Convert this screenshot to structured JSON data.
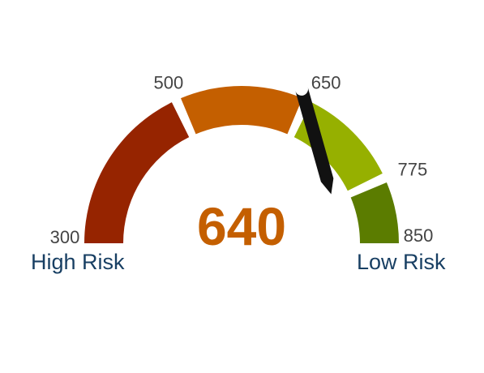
{
  "gauge": {
    "min": 300,
    "max": 850,
    "value": 640,
    "value_label": "640",
    "value_color": "#c45f00",
    "segments": [
      {
        "from": 300,
        "to": 500,
        "color": "#962400"
      },
      {
        "from": 500,
        "to": 650,
        "color": "#c45f00"
      },
      {
        "from": 650,
        "to": 775,
        "color": "#96b000"
      },
      {
        "from": 775,
        "to": 850,
        "color": "#5b7c00"
      }
    ],
    "ticks": [
      {
        "value": 300,
        "label": "300"
      },
      {
        "value": 500,
        "label": "500"
      },
      {
        "value": 650,
        "label": "650"
      },
      {
        "value": 775,
        "label": "775"
      },
      {
        "value": 850,
        "label": "850"
      }
    ],
    "pointer_icon": "pen-pointer-icon",
    "pointer_color": "#111111"
  },
  "labels": {
    "low": "High Risk",
    "high": "Low Risk"
  }
}
